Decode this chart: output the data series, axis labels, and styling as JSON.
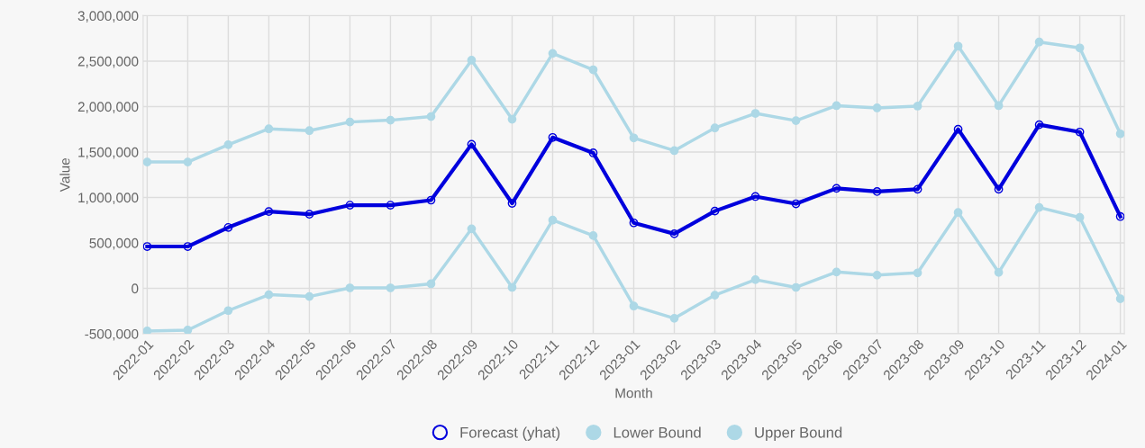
{
  "chart_data": {
    "type": "line",
    "xlabel": "Month",
    "ylabel": "Value",
    "categories": [
      "2022-01",
      "2022-02",
      "2022-03",
      "2022-04",
      "2022-05",
      "2022-06",
      "2022-07",
      "2022-08",
      "2022-09",
      "2022-10",
      "2022-11",
      "2022-12",
      "2023-01",
      "2023-02",
      "2023-03",
      "2023-04",
      "2023-05",
      "2023-06",
      "2023-07",
      "2023-08",
      "2023-09",
      "2023-10",
      "2023-11",
      "2023-12",
      "2024-01"
    ],
    "series": [
      {
        "name": "Forecast (yhat)",
        "color": "#0000dd",
        "values": [
          460000,
          460000,
          670000,
          845000,
          815000,
          915000,
          915000,
          970000,
          1585000,
          935000,
          1660000,
          1490000,
          720000,
          600000,
          850000,
          1010000,
          930000,
          1100000,
          1065000,
          1090000,
          1750000,
          1090000,
          1800000,
          1720000,
          790000
        ]
      },
      {
        "name": "Lower Bound",
        "color": "#add8e6",
        "values": [
          -470000,
          -460000,
          -245000,
          -70000,
          -90000,
          5000,
          5000,
          50000,
          655000,
          10000,
          750000,
          580000,
          -195000,
          -330000,
          -75000,
          95000,
          10000,
          180000,
          145000,
          170000,
          835000,
          175000,
          890000,
          780000,
          -115000
        ]
      },
      {
        "name": "Upper Bound",
        "color": "#add8e6",
        "values": [
          1390000,
          1390000,
          1580000,
          1755000,
          1735000,
          1830000,
          1850000,
          1890000,
          2510000,
          1860000,
          2585000,
          2405000,
          1655000,
          1515000,
          1765000,
          1925000,
          1845000,
          2010000,
          1985000,
          2005000,
          2665000,
          2010000,
          2710000,
          2645000,
          1700000
        ]
      }
    ],
    "ylim": [
      -500000,
      3000000
    ],
    "yticks": [
      {
        "value": -500000,
        "label": "-500,000"
      },
      0,
      {
        "value": 500000,
        "label": "500,000"
      },
      {
        "value": 1000000,
        "label": "1,000,000"
      },
      {
        "value": 1500000,
        "label": "1,500,000"
      },
      {
        "value": 2000000,
        "label": "2,000,000"
      },
      {
        "value": 2500000,
        "label": "2,500,000"
      },
      {
        "value": 3000000,
        "label": "3,000,000"
      }
    ],
    "grid": true,
    "legend": "bottom",
    "marker": "circle",
    "line_style": "solid"
  }
}
